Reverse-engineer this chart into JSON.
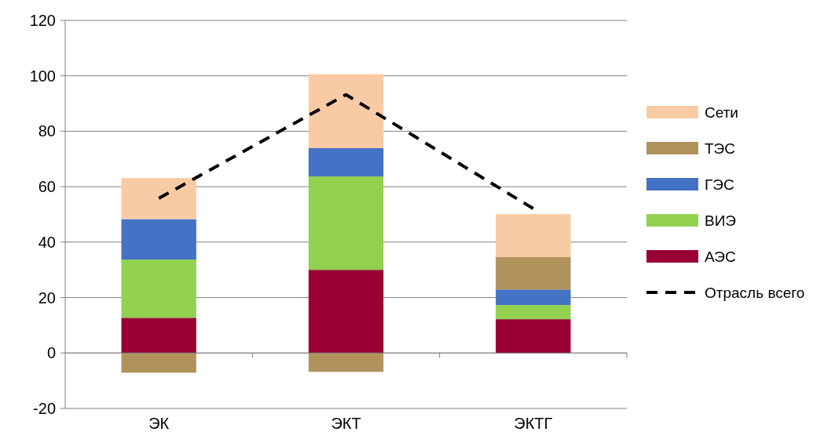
{
  "chart_data": {
    "type": "bar",
    "stacked": true,
    "categories": [
      "ЭК",
      "ЭКТ",
      "ЭКТГ"
    ],
    "series": [
      {
        "name": "АЭС",
        "color": "#990033",
        "values": [
          12.7,
          30,
          12.2
        ]
      },
      {
        "name": "ВИЭ",
        "color": "#92d050",
        "values": [
          21,
          33.7,
          5.1
        ]
      },
      {
        "name": "ГЭС",
        "color": "#4472c4",
        "values": [
          14.6,
          10.2,
          5.6
        ]
      },
      {
        "name": "ТЭС",
        "color": "#b0925c",
        "values": [
          -7.1,
          -6.8,
          11.7
        ]
      },
      {
        "name": "Сети",
        "color": "#f9cba5",
        "values": [
          14.8,
          26.7,
          15.5
        ]
      },
      {
        "name": "Отрасль всего",
        "type": "line",
        "color": "#000000",
        "line_style": "dashed",
        "values": [
          55.8,
          93.2,
          52.1
        ]
      }
    ],
    "ylim": [
      -20,
      120
    ],
    "yticks": [
      -20,
      0,
      20,
      40,
      60,
      80,
      100,
      120
    ],
    "grid": "y",
    "legend": "right"
  }
}
